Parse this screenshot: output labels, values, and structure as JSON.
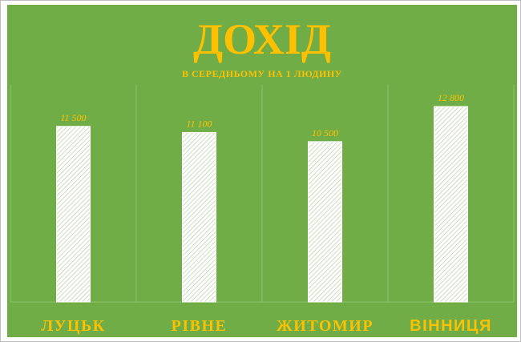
{
  "chart_data": {
    "type": "bar",
    "title": "ДОХІД",
    "subtitle": "В СЕРЕДНЬОМУ НА 1 ЛЮДИНУ",
    "categories": [
      "ЛУЦЬК",
      "РІВНЕ",
      "ЖИТОМИР",
      "ВІННИЦЯ"
    ],
    "values": [
      11500,
      11100,
      10500,
      12800
    ],
    "value_labels": [
      "11 500",
      "11 100",
      "10 500",
      "12 800"
    ],
    "ylim": [
      0,
      14000
    ],
    "grid": "vertical category separators",
    "legend": "none",
    "colors": {
      "background": "#70ad47",
      "text": "#ffc000",
      "bar_fill": "#ffffff",
      "bar_hatch": "#b9cfa6",
      "gridline": "#8cc26a"
    }
  }
}
